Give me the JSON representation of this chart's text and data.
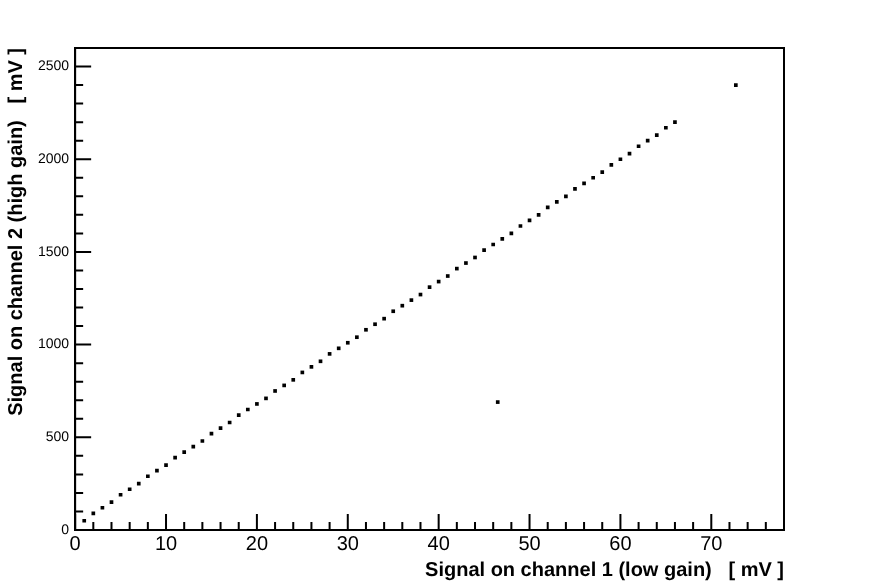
{
  "chart_data": {
    "type": "scatter",
    "xlabel": "Signal on channel 1 (low gain)   [ mV ]",
    "ylabel": "Signal on channel 2 (high gain)   [ mV ]",
    "x": [
      1,
      2,
      3,
      4,
      5,
      6,
      7,
      8,
      9,
      10,
      11,
      12,
      13,
      14,
      15,
      16,
      17,
      18,
      19,
      20,
      21,
      22,
      23,
      24,
      25,
      26,
      27,
      28,
      29,
      30,
      31,
      32,
      33,
      34,
      35,
      36,
      37,
      38,
      39,
      40,
      41,
      42,
      43,
      44,
      45,
      46,
      47,
      48,
      49,
      50,
      51,
      52,
      53,
      54,
      55,
      56,
      57,
      58,
      59,
      60,
      61,
      62,
      63,
      64,
      65,
      66,
      72.7,
      46.5
    ],
    "values": [
      50,
      90,
      120,
      150,
      190,
      220,
      250,
      290,
      320,
      350,
      390,
      420,
      450,
      480,
      520,
      550,
      580,
      620,
      650,
      680,
      710,
      750,
      780,
      810,
      850,
      880,
      910,
      950,
      980,
      1010,
      1040,
      1080,
      1110,
      1140,
      1180,
      1210,
      1240,
      1270,
      1310,
      1340,
      1370,
      1410,
      1440,
      1470,
      1510,
      1540,
      1570,
      1600,
      1640,
      1670,
      1700,
      1740,
      1770,
      1800,
      1840,
      1870,
      1900,
      1930,
      1970,
      2000,
      2030,
      2070,
      2100,
      2130,
      2170,
      2200,
      2400,
      690
    ],
    "color": "#000000",
    "marker": "square",
    "grid": false,
    "legend": false,
    "xlim": [
      0,
      78
    ],
    "xticks": [
      0,
      {
        "value": 2,
        "label": null
      },
      {
        "value": 4,
        "label": null
      },
      {
        "value": 6,
        "label": null
      },
      {
        "value": 8,
        "label": null
      },
      10,
      {
        "value": 12,
        "label": null
      },
      {
        "value": 14,
        "label": null
      },
      {
        "value": 16,
        "label": null
      },
      {
        "value": 18,
        "label": null
      },
      20,
      {
        "value": 22,
        "label": null
      },
      {
        "value": 24,
        "label": null
      },
      {
        "value": 26,
        "label": null
      },
      {
        "value": 28,
        "label": null
      },
      30,
      {
        "value": 32,
        "label": null
      },
      {
        "value": 34,
        "label": null
      },
      {
        "value": 36,
        "label": null
      },
      {
        "value": 38,
        "label": null
      },
      40,
      {
        "value": 42,
        "label": null
      },
      {
        "value": 44,
        "label": null
      },
      {
        "value": 46,
        "label": null
      },
      {
        "value": 48,
        "label": null
      },
      50,
      {
        "value": 52,
        "label": null
      },
      {
        "value": 54,
        "label": null
      },
      {
        "value": 56,
        "label": null
      },
      {
        "value": 58,
        "label": null
      },
      60,
      {
        "value": 62,
        "label": null
      },
      {
        "value": 64,
        "label": null
      },
      {
        "value": 66,
        "label": null
      },
      {
        "value": 68,
        "label": null
      },
      70,
      {
        "value": 72,
        "label": null
      },
      {
        "value": 74,
        "label": null
      },
      {
        "value": 76,
        "label": null
      }
    ],
    "ylim": [
      0,
      2600
    ],
    "yticks": [
      0,
      {
        "value": 100,
        "label": null
      },
      {
        "value": 200,
        "label": null
      },
      {
        "value": 300,
        "label": null
      },
      {
        "value": 400,
        "label": null
      },
      500,
      {
        "value": 600,
        "label": null
      },
      {
        "value": 700,
        "label": null
      },
      {
        "value": 800,
        "label": null
      },
      {
        "value": 900,
        "label": null
      },
      1000,
      {
        "value": 1100,
        "label": null
      },
      {
        "value": 1200,
        "label": null
      },
      {
        "value": 1300,
        "label": null
      },
      {
        "value": 1400,
        "label": null
      },
      1500,
      {
        "value": 1600,
        "label": null
      },
      {
        "value": 1700,
        "label": null
      },
      {
        "value": 1800,
        "label": null
      },
      {
        "value": 1900,
        "label": null
      },
      2000,
      {
        "value": 2100,
        "label": null
      },
      {
        "value": 2200,
        "label": null
      },
      {
        "value": 2300,
        "label": null
      },
      {
        "value": 2400,
        "label": null
      },
      2500,
      {
        "value": 2600,
        "label": null
      }
    ]
  }
}
